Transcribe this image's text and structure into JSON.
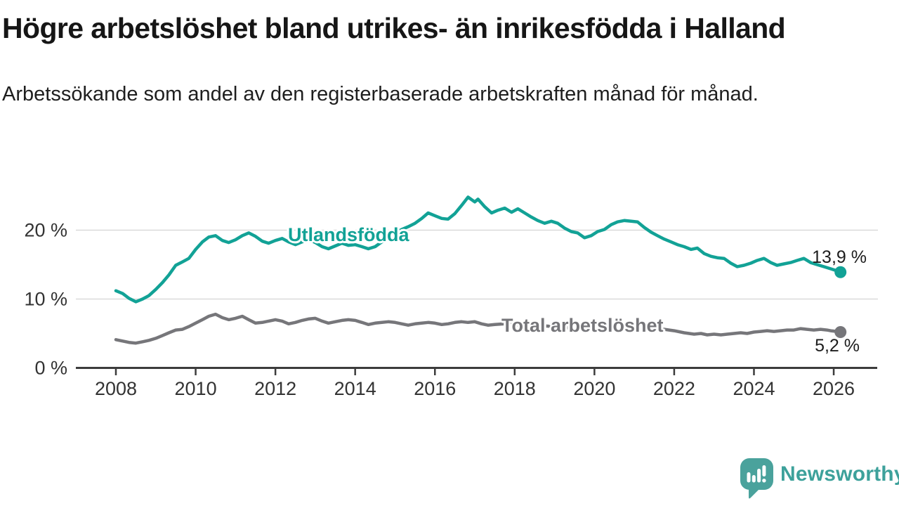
{
  "header": {
    "title": "Högre arbetslöshet bland utrikes- än inrikesfödda i Halland",
    "subtitle": "Arbetssökande som andel av den registerbaserade arbetskraften månad för månad."
  },
  "chart_data": {
    "type": "line",
    "unit": "%",
    "grid": "horizontal",
    "legend_position": "inline-labels",
    "xlim": [
      2007.0,
      2027.1
    ],
    "ylim": [
      0,
      26.5
    ],
    "x_ticks": [
      2008,
      2010,
      2012,
      2014,
      2016,
      2018,
      2020,
      2022,
      2024,
      2026
    ],
    "y_ticks": [
      {
        "value": 0,
        "label": "0 %"
      },
      {
        "value": 10,
        "label": "10 %"
      },
      {
        "value": 20,
        "label": "20 %"
      }
    ],
    "colors": {
      "axis": "#3c3c3c",
      "grid": "#dadada",
      "tick_label": "#333333",
      "accent_teal": "#12a296",
      "neutral_gray": "#76767a"
    },
    "series": [
      {
        "name": "Utlandsfödda",
        "color": "#12a296",
        "end_label": "13,9 %",
        "end_value": 13.9,
        "points": [
          [
            2008.0,
            11.2
          ],
          [
            2008.17,
            10.8
          ],
          [
            2008.33,
            10.1
          ],
          [
            2008.5,
            9.6
          ],
          [
            2008.67,
            10.0
          ],
          [
            2008.83,
            10.5
          ],
          [
            2009.0,
            11.4
          ],
          [
            2009.17,
            12.4
          ],
          [
            2009.33,
            13.5
          ],
          [
            2009.5,
            14.9
          ],
          [
            2009.67,
            15.4
          ],
          [
            2009.83,
            15.9
          ],
          [
            2010.0,
            17.2
          ],
          [
            2010.17,
            18.3
          ],
          [
            2010.33,
            19.0
          ],
          [
            2010.5,
            19.2
          ],
          [
            2010.67,
            18.5
          ],
          [
            2010.83,
            18.2
          ],
          [
            2011.0,
            18.6
          ],
          [
            2011.17,
            19.2
          ],
          [
            2011.33,
            19.6
          ],
          [
            2011.5,
            19.1
          ],
          [
            2011.67,
            18.4
          ],
          [
            2011.83,
            18.1
          ],
          [
            2012.0,
            18.5
          ],
          [
            2012.17,
            18.8
          ],
          [
            2012.33,
            18.3
          ],
          [
            2012.5,
            17.9
          ],
          [
            2012.67,
            18.3
          ],
          [
            2012.83,
            18.7
          ],
          [
            2013.0,
            18.2
          ],
          [
            2013.17,
            17.6
          ],
          [
            2013.33,
            17.3
          ],
          [
            2013.5,
            17.7
          ],
          [
            2013.67,
            18.1
          ],
          [
            2013.83,
            17.8
          ],
          [
            2014.0,
            17.9
          ],
          [
            2014.17,
            17.6
          ],
          [
            2014.33,
            17.3
          ],
          [
            2014.5,
            17.6
          ],
          [
            2014.67,
            18.3
          ],
          [
            2014.83,
            19.1
          ],
          [
            2015.0,
            19.6
          ],
          [
            2015.17,
            20.1
          ],
          [
            2015.33,
            20.5
          ],
          [
            2015.5,
            21.0
          ],
          [
            2015.67,
            21.7
          ],
          [
            2015.83,
            22.5
          ],
          [
            2016.0,
            22.1
          ],
          [
            2016.17,
            21.7
          ],
          [
            2016.33,
            21.6
          ],
          [
            2016.5,
            22.4
          ],
          [
            2016.67,
            23.6
          ],
          [
            2016.83,
            24.8
          ],
          [
            2017.0,
            24.1
          ],
          [
            2017.08,
            24.5
          ],
          [
            2017.25,
            23.4
          ],
          [
            2017.42,
            22.5
          ],
          [
            2017.58,
            22.9
          ],
          [
            2017.75,
            23.2
          ],
          [
            2017.92,
            22.6
          ],
          [
            2018.08,
            23.1
          ],
          [
            2018.25,
            22.5
          ],
          [
            2018.42,
            21.9
          ],
          [
            2018.58,
            21.4
          ],
          [
            2018.75,
            21.0
          ],
          [
            2018.92,
            21.3
          ],
          [
            2019.08,
            21.0
          ],
          [
            2019.25,
            20.3
          ],
          [
            2019.42,
            19.8
          ],
          [
            2019.58,
            19.6
          ],
          [
            2019.75,
            18.9
          ],
          [
            2019.92,
            19.2
          ],
          [
            2020.08,
            19.8
          ],
          [
            2020.25,
            20.1
          ],
          [
            2020.42,
            20.8
          ],
          [
            2020.58,
            21.2
          ],
          [
            2020.75,
            21.4
          ],
          [
            2020.92,
            21.3
          ],
          [
            2021.08,
            21.2
          ],
          [
            2021.25,
            20.4
          ],
          [
            2021.42,
            19.7
          ],
          [
            2021.58,
            19.2
          ],
          [
            2021.75,
            18.7
          ],
          [
            2021.92,
            18.3
          ],
          [
            2022.08,
            17.9
          ],
          [
            2022.25,
            17.6
          ],
          [
            2022.42,
            17.2
          ],
          [
            2022.58,
            17.4
          ],
          [
            2022.75,
            16.6
          ],
          [
            2022.92,
            16.2
          ],
          [
            2023.08,
            16.0
          ],
          [
            2023.25,
            15.9
          ],
          [
            2023.42,
            15.2
          ],
          [
            2023.58,
            14.7
          ],
          [
            2023.75,
            14.9
          ],
          [
            2023.92,
            15.2
          ],
          [
            2024.08,
            15.6
          ],
          [
            2024.25,
            15.9
          ],
          [
            2024.42,
            15.3
          ],
          [
            2024.58,
            14.9
          ],
          [
            2024.75,
            15.1
          ],
          [
            2024.92,
            15.3
          ],
          [
            2025.08,
            15.6
          ],
          [
            2025.25,
            15.9
          ],
          [
            2025.42,
            15.3
          ],
          [
            2025.58,
            15.0
          ],
          [
            2025.75,
            14.7
          ],
          [
            2025.92,
            14.4
          ],
          [
            2026.08,
            14.1
          ],
          [
            2026.17,
            13.9
          ]
        ]
      },
      {
        "name": "Total arbetslöshet",
        "color": "#76767a",
        "end_label": "5,2 %",
        "end_value": 5.2,
        "points": [
          [
            2008.0,
            4.1
          ],
          [
            2008.17,
            3.9
          ],
          [
            2008.33,
            3.7
          ],
          [
            2008.5,
            3.6
          ],
          [
            2008.67,
            3.8
          ],
          [
            2008.83,
            4.0
          ],
          [
            2009.0,
            4.3
          ],
          [
            2009.17,
            4.7
          ],
          [
            2009.33,
            5.1
          ],
          [
            2009.5,
            5.5
          ],
          [
            2009.67,
            5.6
          ],
          [
            2009.83,
            6.0
          ],
          [
            2010.0,
            6.5
          ],
          [
            2010.17,
            7.0
          ],
          [
            2010.33,
            7.5
          ],
          [
            2010.5,
            7.8
          ],
          [
            2010.67,
            7.3
          ],
          [
            2010.83,
            7.0
          ],
          [
            2011.0,
            7.2
          ],
          [
            2011.17,
            7.5
          ],
          [
            2011.33,
            7.0
          ],
          [
            2011.5,
            6.5
          ],
          [
            2011.67,
            6.6
          ],
          [
            2011.83,
            6.8
          ],
          [
            2012.0,
            7.0
          ],
          [
            2012.17,
            6.8
          ],
          [
            2012.33,
            6.4
          ],
          [
            2012.5,
            6.6
          ],
          [
            2012.67,
            6.9
          ],
          [
            2012.83,
            7.1
          ],
          [
            2013.0,
            7.2
          ],
          [
            2013.17,
            6.8
          ],
          [
            2013.33,
            6.5
          ],
          [
            2013.5,
            6.7
          ],
          [
            2013.67,
            6.9
          ],
          [
            2013.83,
            7.0
          ],
          [
            2014.0,
            6.9
          ],
          [
            2014.17,
            6.6
          ],
          [
            2014.33,
            6.3
          ],
          [
            2014.5,
            6.5
          ],
          [
            2014.67,
            6.6
          ],
          [
            2014.83,
            6.7
          ],
          [
            2015.0,
            6.6
          ],
          [
            2015.17,
            6.4
          ],
          [
            2015.33,
            6.2
          ],
          [
            2015.5,
            6.4
          ],
          [
            2015.67,
            6.5
          ],
          [
            2015.83,
            6.6
          ],
          [
            2016.0,
            6.5
          ],
          [
            2016.17,
            6.3
          ],
          [
            2016.33,
            6.4
          ],
          [
            2016.5,
            6.6
          ],
          [
            2016.67,
            6.7
          ],
          [
            2016.83,
            6.6
          ],
          [
            2017.0,
            6.7
          ],
          [
            2017.17,
            6.4
          ],
          [
            2017.33,
            6.2
          ],
          [
            2017.5,
            6.3
          ],
          [
            2017.75,
            6.4
          ],
          [
            2018.0,
            6.3
          ],
          [
            2018.25,
            6.1
          ],
          [
            2018.5,
            6.0
          ],
          [
            2018.75,
            6.1
          ],
          [
            2019.0,
            6.0
          ],
          [
            2019.25,
            5.8
          ],
          [
            2019.5,
            5.9
          ],
          [
            2019.75,
            5.8
          ],
          [
            2020.0,
            6.0
          ],
          [
            2020.25,
            6.3
          ],
          [
            2020.5,
            6.5
          ],
          [
            2020.75,
            6.4
          ],
          [
            2021.0,
            6.2
          ],
          [
            2021.25,
            6.0
          ],
          [
            2021.5,
            5.8
          ],
          [
            2021.75,
            5.6
          ],
          [
            2022.0,
            5.4
          ],
          [
            2022.25,
            5.1
          ],
          [
            2022.5,
            4.9
          ],
          [
            2022.67,
            5.0
          ],
          [
            2022.83,
            4.8
          ],
          [
            2023.0,
            4.9
          ],
          [
            2023.17,
            4.8
          ],
          [
            2023.33,
            4.9
          ],
          [
            2023.5,
            5.0
          ],
          [
            2023.67,
            5.1
          ],
          [
            2023.83,
            5.0
          ],
          [
            2024.0,
            5.2
          ],
          [
            2024.17,
            5.3
          ],
          [
            2024.33,
            5.4
          ],
          [
            2024.5,
            5.3
          ],
          [
            2024.67,
            5.4
          ],
          [
            2024.83,
            5.5
          ],
          [
            2025.0,
            5.5
          ],
          [
            2025.17,
            5.7
          ],
          [
            2025.33,
            5.6
          ],
          [
            2025.5,
            5.5
          ],
          [
            2025.67,
            5.6
          ],
          [
            2025.83,
            5.5
          ],
          [
            2025.92,
            5.4
          ],
          [
            2026.08,
            5.3
          ],
          [
            2026.17,
            5.2
          ]
        ]
      }
    ]
  },
  "branding": {
    "logo_text": "Newsworthy",
    "logo_color": "#3da19b",
    "logo_mark_color": "#4aa29c",
    "logo_mark": "speech-bubble-bar-chart"
  }
}
